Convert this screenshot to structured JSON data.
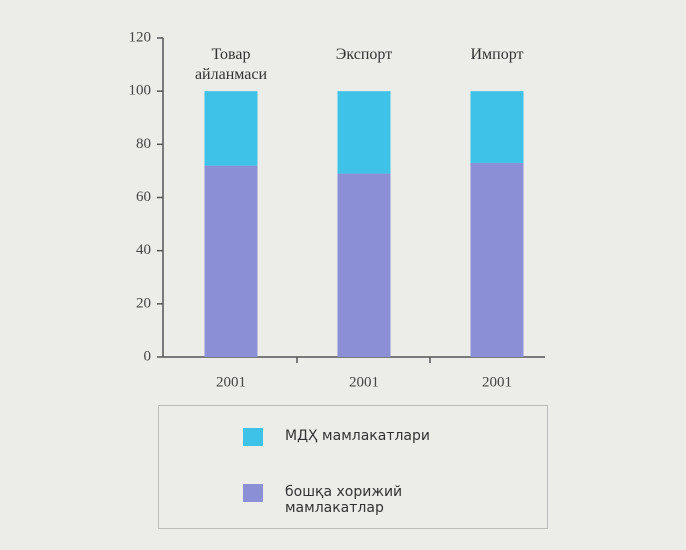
{
  "chart_data": {
    "type": "stacked_bar",
    "categories": [
      "2001",
      "2001",
      "2001"
    ],
    "group_labels": [
      "Товар айланмаси",
      "Экспорт",
      "Импорт"
    ],
    "series": [
      {
        "name": "бошқа хорижий мамлакатлар",
        "color": "#8b8fd6",
        "values": [
          72,
          69,
          73
        ]
      },
      {
        "name": "МДҲ мамлакатлари",
        "color": "#3fc2e8",
        "values": [
          28,
          31,
          27
        ]
      }
    ],
    "ylim": [
      0,
      120
    ],
    "yticks": [
      0,
      20,
      40,
      60,
      80,
      100,
      120
    ]
  }
}
